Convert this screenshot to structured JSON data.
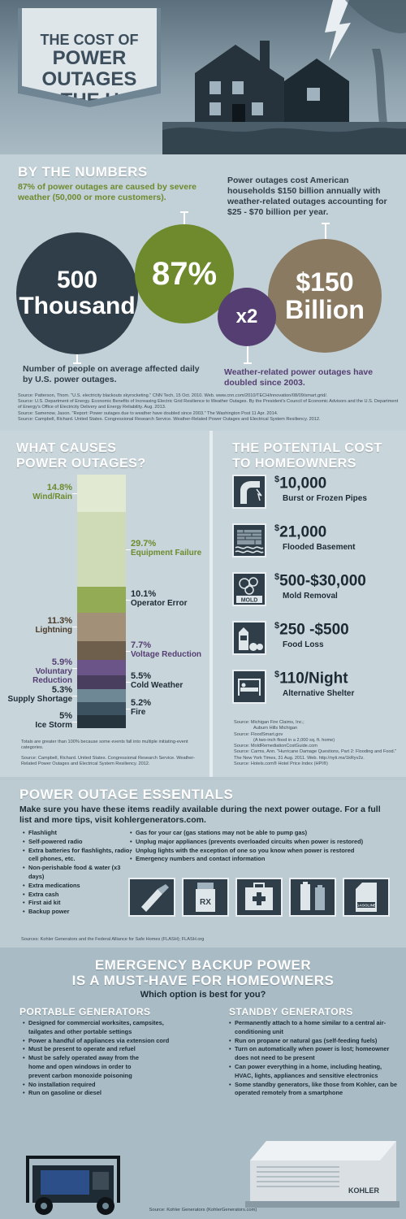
{
  "title": {
    "line1": "THE COST OF",
    "line2": "POWER OUTAGES",
    "line3": "IN THE U.S."
  },
  "numbers": {
    "heading": "BY THE NUMBERS",
    "stat_87_text": "87% of power outages are caused by severe weather (50,000 or more customers).",
    "stat_150_text": "Power outages cost American households $150 billion annually with weather-related outages accounting for $25 - $70 billion per year.",
    "stat_500_text": "Number of people on average affected daily by U.S. power outages.",
    "stat_x2_text": "Weather-related power outages have doubled since 2003.",
    "circles": {
      "c500_line1": "500",
      "c500_line2": "Thousand",
      "c87": "87%",
      "cx2": "x2",
      "c150_line1": "$150",
      "c150_line2": "Billion"
    },
    "sources": [
      "Source: Patterson, Thom. \"U.S. electricity blackouts skyrocketing.\" CNN Tech, 15 Oct. 2010. Web. www.cnn.com/2010/TECH/innovation/08/09/smart.grid/.",
      "Source: U.S. Department of Energy. Economic Benefits of Increasing Electric Grid Resilience to Weather Outages. By the President's Council of Economic Advisors and the U.S. Department of Energy's Office of Electricity Delivery and Energy Reliability. Aug. 2013.",
      "Source: Samenow, Jason. \"Report: Power outages due to weather have doubled since 2003.\" The Washington Post 11 Apr. 2014.",
      "Source: Campbell, Richard. United States. Congressional Research Service. Weather-Related Power Outages and Electrical System Resiliency. 2012."
    ]
  },
  "causes": {
    "heading_line1": "WHAT CAUSES",
    "heading_line2": "POWER OUTAGES?",
    "items": [
      {
        "pct": "14.8%",
        "label": "Wind/Rain",
        "value": 14.8,
        "color": "#e2e9d2",
        "label_color": "#6e8a2d",
        "side": "left"
      },
      {
        "pct": "29.7%",
        "label": "Equipment Failure",
        "value": 29.7,
        "color": "#cfdbb6",
        "label_color": "#6e8a2d",
        "side": "right"
      },
      {
        "pct": "10.1%",
        "label": "Operator Error",
        "value": 10.1,
        "color": "#92ab54",
        "label_color": "#1d2a33",
        "side": "right"
      },
      {
        "pct": "11.3%",
        "label": "Lightning",
        "value": 11.3,
        "color": "#a39078",
        "label_color": "#4a3a28",
        "side": "left"
      },
      {
        "pct": "7.7%",
        "label": "Voltage Reduction",
        "value": 7.7,
        "color": "#6e5f4c",
        "label_color": "#553e72",
        "side": "right"
      },
      {
        "pct": "5.9%",
        "label": "Voluntary Reduction",
        "value": 5.9,
        "color": "#6b5588",
        "label_color": "#553e72",
        "side": "left"
      },
      {
        "pct": "5.5%",
        "label": "Cold Weather",
        "value": 5.5,
        "color": "#4a3e5e",
        "label_color": "#1d2a33",
        "side": "right"
      },
      {
        "pct": "5.3%",
        "label": "Supply Shortage",
        "value": 5.3,
        "color": "#6f8896",
        "label_color": "#1d2a33",
        "side": "left"
      },
      {
        "pct": "5.2%",
        "label": "Fire",
        "value": 5.2,
        "color": "#3d5260",
        "label_color": "#1d2a33",
        "side": "right"
      },
      {
        "pct": "5%",
        "label": "Ice Storm",
        "value": 5.0,
        "color": "#26343d",
        "label_color": "#1d2a33",
        "side": "left"
      }
    ],
    "note": "Totals are greater than 100% because some events fall into multiple initiating-event categories.",
    "source": "Source: Campbell, Richard. United States. Congressional Research Service. Weather-Related Power Outages and Electrical System Resiliency. 2012."
  },
  "costs": {
    "heading_line1": "THE POTENTIAL COST",
    "heading_line2": "TO HOMEOWNERS",
    "items": [
      {
        "amount": "10,000",
        "prefix": "$",
        "label": "Burst or Frozen Pipes",
        "icon": "pipe-icon"
      },
      {
        "amount": "21,000",
        "prefix": "$",
        "label": "Flooded Basement",
        "icon": "flood-icon"
      },
      {
        "amount": "500-$30,000",
        "prefix": "$",
        "label": "Mold Removal",
        "icon": "mold-icon"
      },
      {
        "amount": "250 -$500",
        "prefix": "$",
        "label": "Food Loss",
        "icon": "food-icon"
      },
      {
        "amount": "110/Night",
        "prefix": "$",
        "label": "Alternative Shelter",
        "icon": "bed-icon"
      }
    ],
    "mold_label": "MOLD",
    "sources": [
      "Source: Michigan Fire Claims, Inc.;",
      "Auburn Hills Michigan",
      "Source: FloodSmart.gov",
      "(A two-inch flood in a 2,000 sq. ft. home)",
      "Source: MoldRemediationCostGuide.com",
      "Source: Carms, Ann. \"Hurricane Damage Questions, Part 2: Flooding and Food.\" The New York Times, 31 Aug. 2011. Web. http://nyti.ms/1kRyv2z.",
      "Source: Hotels.com® Hotel Price Index (HPI®)"
    ]
  },
  "essentials": {
    "heading": "POWER OUTAGE ESSENTIALS",
    "intro": "Make sure you have these items readily available during the next power outage. For a full list and more tips, visit kohlergenerators.com.",
    "list1": [
      "Flashlight",
      "Self-powered radio",
      "Extra batteries for flashlights, radio, cell phones, etc.",
      "Non-perishable food & water (x3 days)",
      "Extra medications",
      "Extra cash",
      "First aid kit",
      "Backup power"
    ],
    "list2": [
      "Gas for your car (gas stations may not be able to pump gas)",
      "Unplug major appliances (prevents overloaded circuits when power is restored)",
      "Unplug lights with the exception of one so you know when power is restored",
      "Emergency numbers and contact information"
    ],
    "rx_label": "RX",
    "gas_label": "GASOLINE",
    "source": "Sources: Kohler Generators and the Federal Alliance for Safe Homes (FLASH); FLASH.org"
  },
  "emergency": {
    "heading_line1": "EMERGENCY BACKUP POWER",
    "heading_line2": "IS A MUST-HAVE FOR HOMEOWNERS",
    "subheading": "Which option is best for you?",
    "portable_heading": "PORTABLE GENERATORS",
    "standby_heading": "STANDBY GENERATORS",
    "portable_list": [
      "Designed for commercial worksites, campsites, tailgates and other portable settings",
      "Power a handful of appliances via extension cord",
      "Must be present to operate and refuel",
      "Must be safely operated away from the home and open windows in order to prevent carbon monoxide poisoning",
      "No installation required",
      "Run on gasoline or diesel"
    ],
    "standby_list": [
      "Permanently attach to a home similar to a central air-conditioning unit",
      "Run on propane or natural gas (self-feeding fuels)",
      "Turn on automatically when power is lost; homeowner does not need to be present",
      "Can power everything in a home, including heating, HVAC, lights, appliances and sensitive electronics",
      "Some standby generators, like those from Kohler, can be operated remotely from a smartphone"
    ],
    "kohler_label": "KOHLER",
    "source": "Source: Kohler Generators (KohlerGenerators.com)"
  }
}
